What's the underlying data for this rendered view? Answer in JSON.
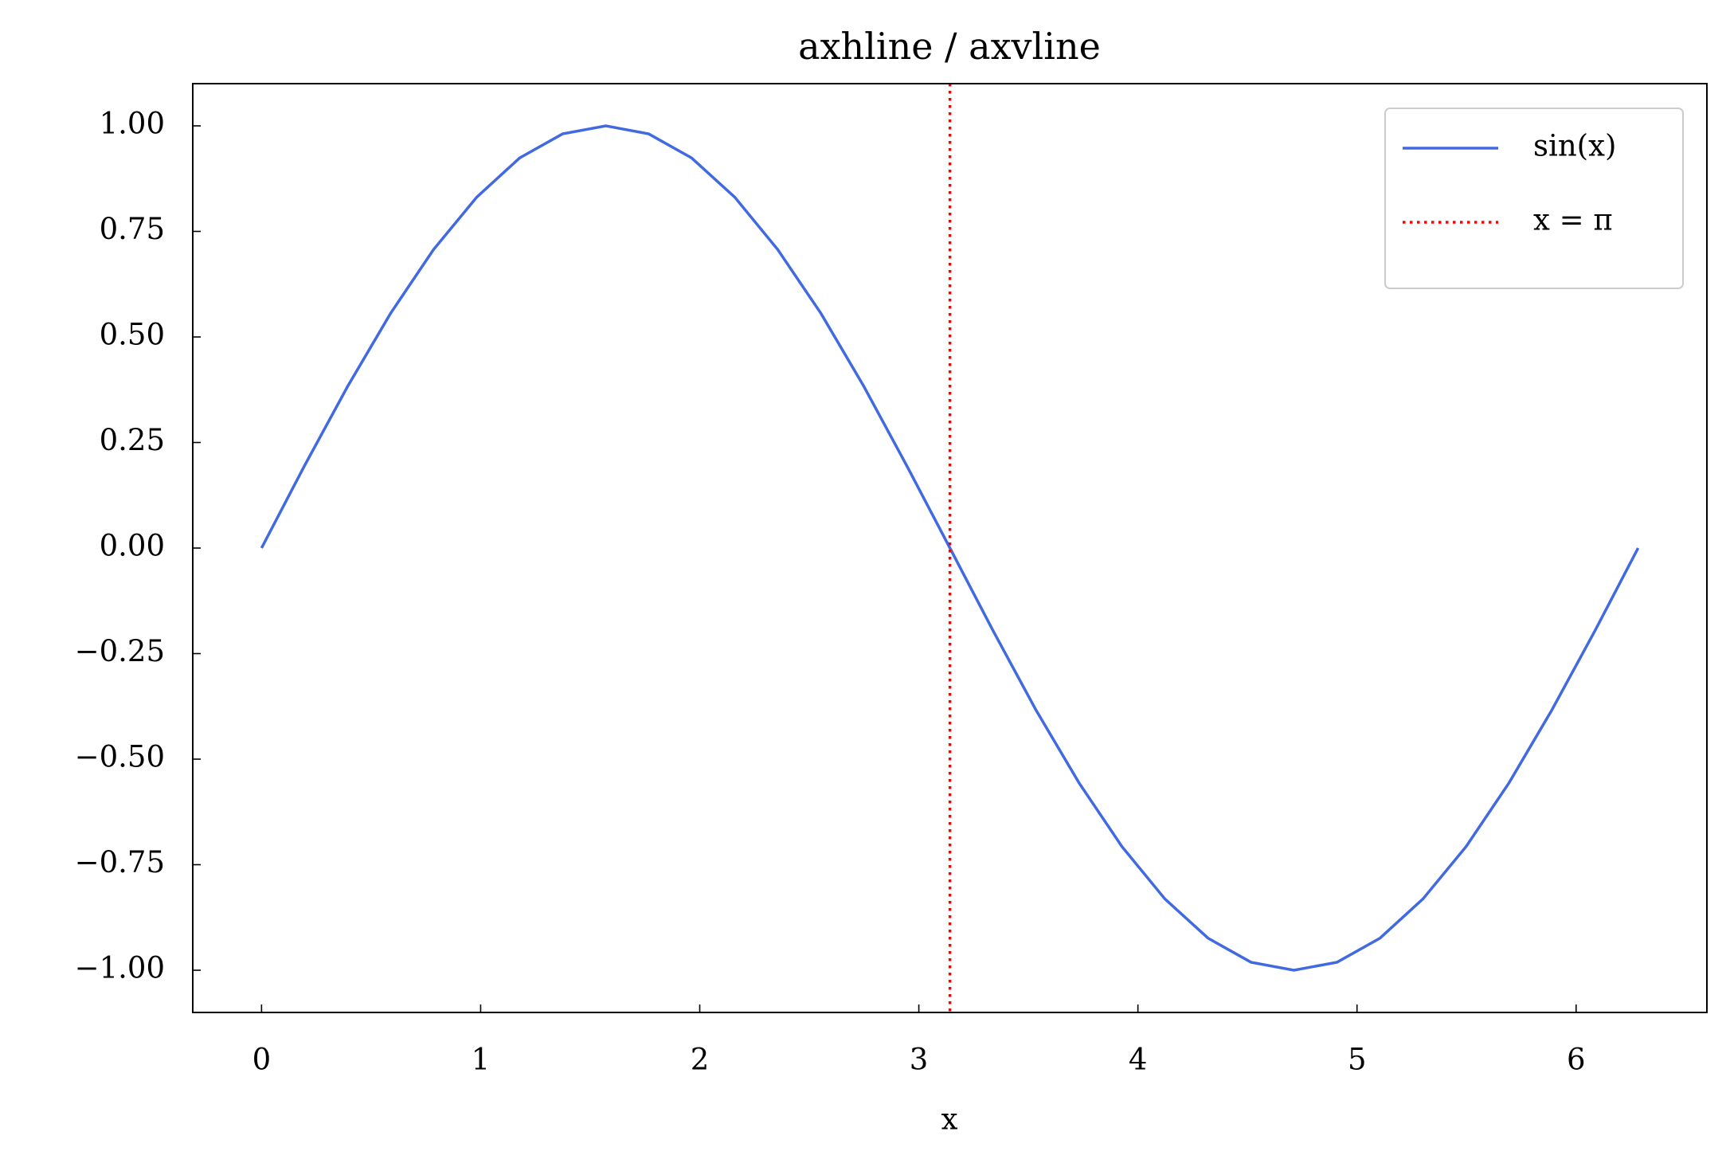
{
  "chart_data": {
    "type": "line",
    "title": "axhline / axvline",
    "xlabel": "x",
    "x": [
      0,
      0.196,
      0.393,
      0.589,
      0.785,
      0.982,
      1.178,
      1.374,
      1.571,
      1.767,
      1.963,
      2.16,
      2.356,
      2.553,
      2.749,
      2.945,
      3.142,
      3.338,
      3.534,
      3.731,
      3.927,
      4.123,
      4.32,
      4.516,
      4.712,
      4.909,
      5.105,
      5.301,
      5.498,
      5.694,
      5.89,
      6.087,
      6.283
    ],
    "series": [
      {
        "name": "sin(x)",
        "color": "#4169e1",
        "values": [
          0,
          0.195,
          0.383,
          0.556,
          0.707,
          0.831,
          0.924,
          0.981,
          1,
          0.981,
          0.924,
          0.831,
          0.707,
          0.556,
          0.383,
          0.195,
          0,
          -0.195,
          -0.383,
          -0.556,
          -0.707,
          -0.831,
          -0.924,
          -0.981,
          -1,
          -0.981,
          -0.924,
          -0.831,
          -0.707,
          -0.556,
          -0.383,
          -0.195,
          0
        ]
      }
    ],
    "vlines": [
      {
        "name": "x = π",
        "x": 3.142,
        "color": "#ff0000",
        "style": "dotted"
      }
    ],
    "xlim": [
      -0.314,
      6.597
    ],
    "ylim": [
      -1.1,
      1.1
    ],
    "xticks": [
      0,
      1,
      2,
      3,
      4,
      5,
      6
    ],
    "yticks": [
      {
        "value": -1,
        "label": "−1.00"
      },
      {
        "value": -0.75,
        "label": "−0.75"
      },
      {
        "value": -0.5,
        "label": "−0.50"
      },
      {
        "value": -0.25,
        "label": "−0.25"
      },
      {
        "value": 0,
        "label": "0.00"
      },
      {
        "value": 0.25,
        "label": "0.25"
      },
      {
        "value": 0.5,
        "label": "0.50"
      },
      {
        "value": 0.75,
        "label": "0.75"
      },
      {
        "value": 1,
        "label": "1.00"
      }
    ],
    "legend": "upper right"
  }
}
